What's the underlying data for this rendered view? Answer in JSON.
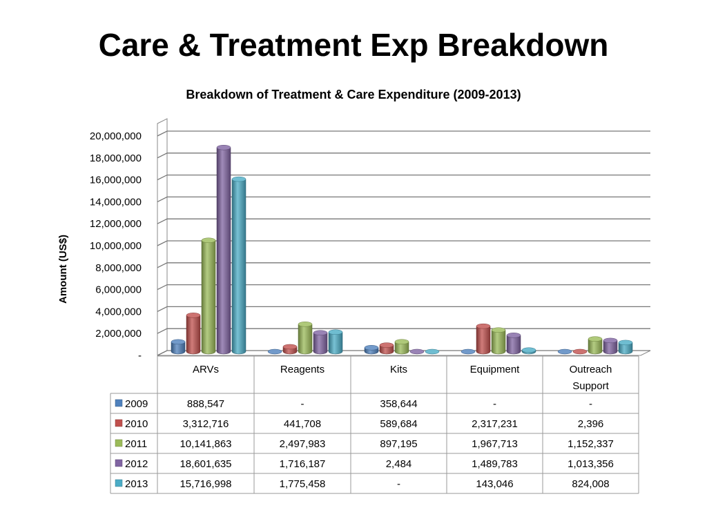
{
  "slide": {
    "title": "Care & Treatment Exp Breakdown"
  },
  "chart_data": {
    "type": "bar",
    "title": "Breakdown of Treatment & Care Expenditure (2009-2013)",
    "ylabel": "Amount (US$)",
    "xlabel": "",
    "ylim": [
      0,
      20000000
    ],
    "ytick_step": 2000000,
    "ytick_labels": [
      "-",
      "2,000,000",
      "4,000,000",
      "6,000,000",
      "8,000,000",
      "10,000,000",
      "12,000,000",
      "14,000,000",
      "16,000,000",
      "18,000,000",
      "20,000,000"
    ],
    "grid": true,
    "legend_placement": "data-table-left",
    "categories": [
      "ARVs",
      "Reagents",
      "Kits",
      "Equipment",
      "Outreach Support"
    ],
    "series": [
      {
        "name": "2009",
        "color": "#4f81bd",
        "values": [
          888547,
          0,
          358644,
          0,
          0
        ],
        "labels": [
          "888,547",
          "-",
          "358,644",
          "-",
          "-"
        ]
      },
      {
        "name": "2010",
        "color": "#c0504d",
        "values": [
          3312716,
          441708,
          589684,
          2317231,
          2396
        ],
        "labels": [
          "3,312,716",
          "441,708",
          "589,684",
          "2,317,231",
          "2,396"
        ]
      },
      {
        "name": "2011",
        "color": "#9bbb59",
        "values": [
          10141863,
          2497983,
          897195,
          1967713,
          1152337
        ],
        "labels": [
          "10,141,863",
          "2,497,983",
          "897,195",
          "1,967,713",
          "1,152,337"
        ]
      },
      {
        "name": "2012",
        "color": "#8064a2",
        "values": [
          18601635,
          1716187,
          2484,
          1489783,
          1013356
        ],
        "labels": [
          "18,601,635",
          "1,716,187",
          "2,484",
          "1,489,783",
          "1,013,356"
        ]
      },
      {
        "name": "2013",
        "color": "#4bacc6",
        "values": [
          15716998,
          1775458,
          0,
          143046,
          824008
        ],
        "labels": [
          "15,716,998",
          "1,775,458",
          "-",
          "143,046",
          "824,008"
        ]
      }
    ]
  }
}
